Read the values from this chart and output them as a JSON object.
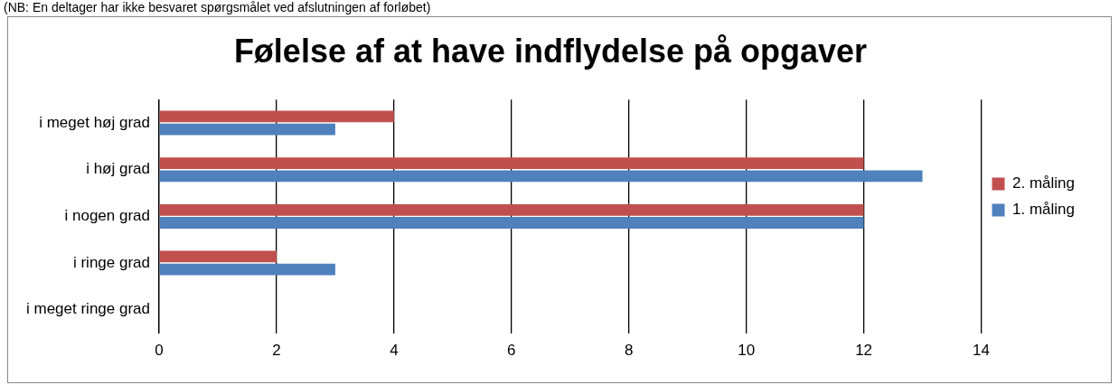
{
  "chart_data": {
    "type": "bar",
    "orientation": "horizontal",
    "title": "Følelse af at have indflydelse på opgaver",
    "annotations": [
      "(NB: En deltager har ikke besvaret spørgsmålet ved afslutningen af forløbet)"
    ],
    "categories": [
      "i meget høj grad",
      "i høj grad",
      "i nogen grad",
      "i ringe grad",
      "i meget ringe grad"
    ],
    "series": [
      {
        "name": "2. måling",
        "color": "#c0504d",
        "values": [
          4,
          12,
          12,
          2,
          0
        ]
      },
      {
        "name": "1. måling",
        "color": "#4f81bd",
        "values": [
          3,
          13,
          12,
          3,
          0
        ]
      }
    ],
    "xlim": [
      0,
      14
    ],
    "xticks": [
      0,
      2,
      4,
      6,
      8,
      10,
      12,
      14
    ],
    "grid": "x",
    "legend": "right"
  }
}
